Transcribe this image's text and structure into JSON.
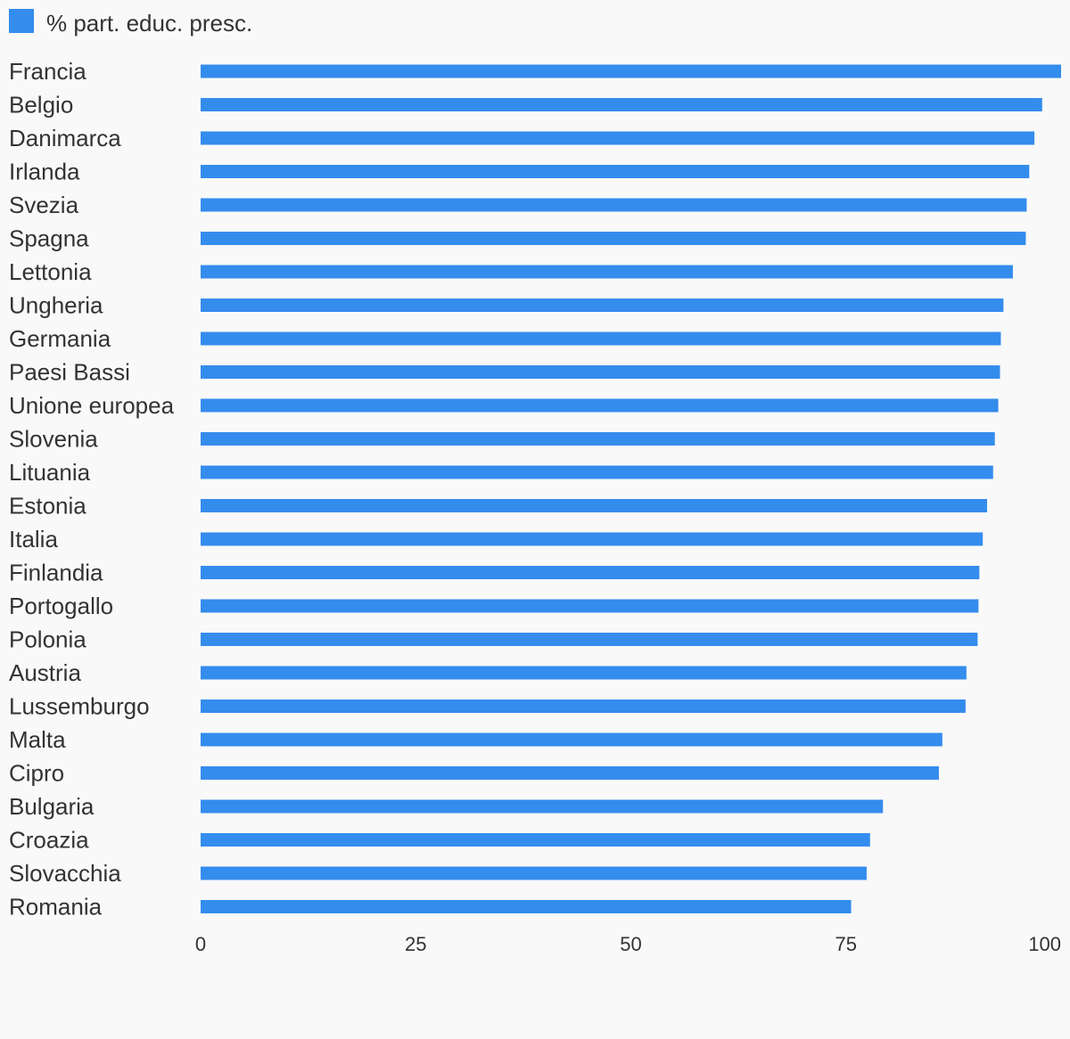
{
  "chart_data": {
    "type": "bar",
    "orientation": "horizontal",
    "title": "",
    "xlabel": "",
    "ylabel": "",
    "xlim": [
      0,
      100
    ],
    "xticks": [
      "0",
      "25",
      "50",
      "75",
      "100"
    ],
    "grid": false,
    "legend_position": "top-left",
    "categories": [
      "Francia",
      "Belgio",
      "Danimarca",
      "Irlanda",
      "Svezia",
      "Spagna",
      "Lettonia",
      "Ungheria",
      "Germania",
      "Paesi Bassi",
      "Unione europea",
      "Slovenia",
      "Lituania",
      "Estonia",
      "Italia",
      "Finlandia",
      "Portogallo",
      "Polonia",
      "Austria",
      "Lussemburgo",
      "Malta",
      "Cipro",
      "Bulgaria",
      "Croazia",
      "Slovacchia",
      "Romania"
    ],
    "series": [
      {
        "name": "% part. educ. presc.",
        "color": "#348ced",
        "values": [
          100.0,
          97.8,
          96.9,
          96.3,
          96.0,
          95.9,
          94.4,
          93.3,
          93.0,
          92.9,
          92.7,
          92.3,
          92.1,
          91.4,
          90.9,
          90.5,
          90.4,
          90.3,
          89.0,
          88.9,
          86.2,
          85.8,
          79.3,
          77.8,
          77.4,
          75.6
        ]
      }
    ]
  }
}
